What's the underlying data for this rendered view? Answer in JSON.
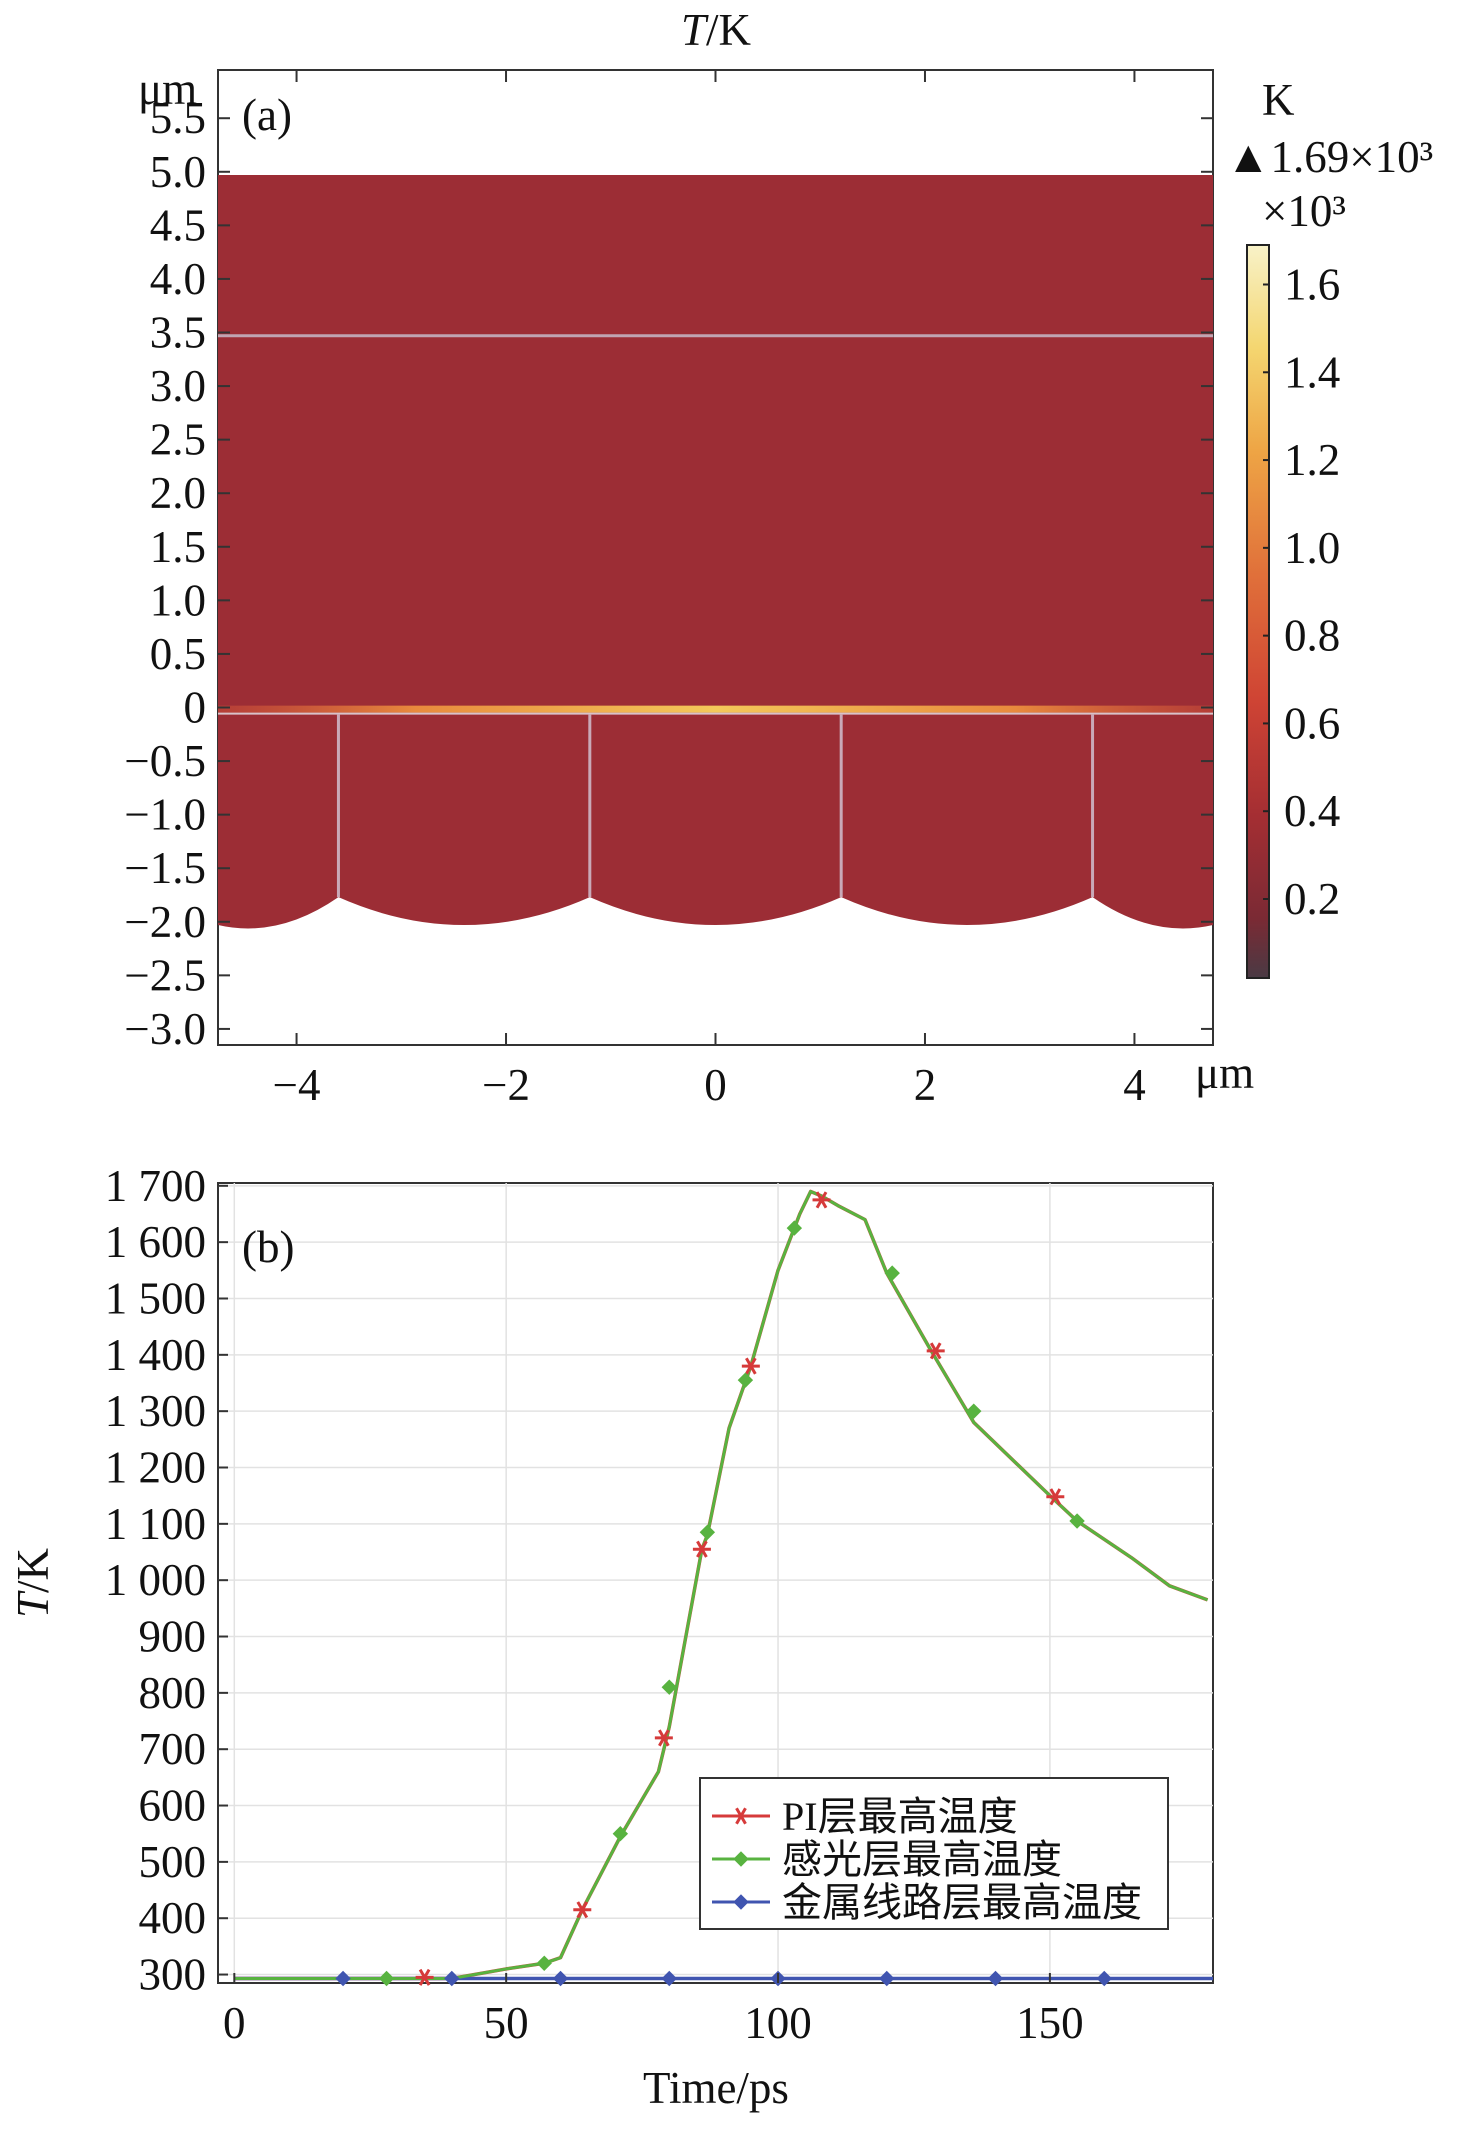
{
  "chart_data": [
    {
      "type": "heatmap",
      "panel_label": "(a)",
      "title_parts": {
        "italic": "T",
        "rest": "/K"
      },
      "x_unit": "μm",
      "y_unit": "μm",
      "xlim": [
        -4.75,
        4.75
      ],
      "ylim": [
        -3.15,
        5.95
      ],
      "x_ticks": [
        {
          "value": -4,
          "label": "−4"
        },
        {
          "value": -2,
          "label": "−2"
        },
        {
          "value": 0,
          "label": "0"
        },
        {
          "value": 2,
          "label": "2"
        },
        {
          "value": 4,
          "label": "4"
        }
      ],
      "y_ticks": [
        {
          "value": 5.5,
          "label": "5.5"
        },
        {
          "value": 5.0,
          "label": "5.0"
        },
        {
          "value": 4.5,
          "label": "4.5"
        },
        {
          "value": 4.0,
          "label": "4.0"
        },
        {
          "value": 3.5,
          "label": "3.5"
        },
        {
          "value": 3.0,
          "label": "3.0"
        },
        {
          "value": 2.5,
          "label": "2.5"
        },
        {
          "value": 2.0,
          "label": "2.0"
        },
        {
          "value": 1.5,
          "label": "1.5"
        },
        {
          "value": 1.0,
          "label": "1.0"
        },
        {
          "value": 0.5,
          "label": "0.5"
        },
        {
          "value": 0,
          "label": "0"
        },
        {
          "value": -0.5,
          "label": "−0.5"
        },
        {
          "value": -1.0,
          "label": "−1.0"
        },
        {
          "value": -1.5,
          "label": "−1.5"
        },
        {
          "value": -2.0,
          "label": "−2.0"
        },
        {
          "value": -2.5,
          "label": "−2.5"
        },
        {
          "value": -3.0,
          "label": "−3.0"
        }
      ],
      "region": {
        "x_range": [
          -4.75,
          4.75
        ],
        "top": 4.97,
        "layer_line": 3.47,
        "interface": -0.02,
        "arc_edges": [
          -4.75,
          -3.6,
          -1.2,
          1.2,
          3.6,
          4.75
        ],
        "arc_edge_y": -1.77,
        "arc_bottom_y": -2.03
      },
      "field_color": "#9c2d35",
      "colorbar": {
        "unit": "K",
        "max_label": "▲1.69×10³",
        "scale_label": "×10³",
        "range": [
          0.02,
          1.69
        ],
        "ticks": [
          {
            "value": 1.6,
            "label": "1.6"
          },
          {
            "value": 1.4,
            "label": "1.4"
          },
          {
            "value": 1.2,
            "label": "1.2"
          },
          {
            "value": 1.0,
            "label": "1.0"
          },
          {
            "value": 0.8,
            "label": "0.8"
          },
          {
            "value": 0.6,
            "label": "0.6"
          },
          {
            "value": 0.4,
            "label": "0.4"
          },
          {
            "value": 0.2,
            "label": "0.2"
          }
        ]
      }
    },
    {
      "type": "line",
      "panel_label": "(b)",
      "xlabel": "Time/ps",
      "ylabel_parts": {
        "italic": "T",
        "rest": "/K"
      },
      "xlim": [
        -3,
        180
      ],
      "ylim": [
        285,
        1705
      ],
      "x_ticks": [
        {
          "value": 0,
          "label": "0"
        },
        {
          "value": 50,
          "label": "50"
        },
        {
          "value": 100,
          "label": "100"
        },
        {
          "value": 150,
          "label": "150"
        }
      ],
      "y_ticks": [
        {
          "value": 1700,
          "label": "1 700"
        },
        {
          "value": 1600,
          "label": "1 600"
        },
        {
          "value": 1500,
          "label": "1 500"
        },
        {
          "value": 1400,
          "label": "1 400"
        },
        {
          "value": 1300,
          "label": "1 300"
        },
        {
          "value": 1200,
          "label": "1 200"
        },
        {
          "value": 1100,
          "label": "1 100"
        },
        {
          "value": 1000,
          "label": "1 000"
        },
        {
          "value": 900,
          "label": "900"
        },
        {
          "value": 800,
          "label": "800"
        },
        {
          "value": 700,
          "label": "700"
        },
        {
          "value": 600,
          "label": "600"
        },
        {
          "value": 500,
          "label": "500"
        },
        {
          "value": 400,
          "label": "400"
        },
        {
          "value": 300,
          "label": "300"
        }
      ],
      "grid": true,
      "legend": {
        "placement": "bottom-right"
      },
      "series": [
        {
          "name": "PI层最高温度",
          "color": "#d63a3a",
          "marker": "star",
          "x": [
            0,
            20,
            40,
            50,
            57,
            60,
            64,
            71,
            78,
            80,
            86,
            87,
            91,
            95,
            100,
            104,
            106,
            108,
            111,
            116,
            120,
            128,
            136,
            150,
            155,
            165,
            172,
            179
          ],
          "y": [
            293,
            293,
            293,
            310,
            320,
            330,
            415,
            545,
            660,
            740,
            1055,
            1080,
            1270,
            1380,
            1550,
            1650,
            1690,
            1682,
            1665,
            1640,
            1545,
            1410,
            1280,
            1150,
            1105,
            1040,
            990,
            965
          ],
          "markers_x": [
            35,
            64,
            79,
            86,
            95,
            108,
            129,
            151
          ],
          "markers_y": [
            295,
            415,
            720,
            1055,
            1380,
            1675,
            1407,
            1148
          ]
        },
        {
          "name": "感光层最高温度",
          "color": "#58b340",
          "marker": "diamond",
          "x": [
            0,
            20,
            40,
            50,
            57,
            60,
            64,
            71,
            78,
            80,
            86,
            87,
            91,
            95,
            100,
            104,
            106,
            108,
            111,
            116,
            120,
            128,
            136,
            150,
            155,
            165,
            172,
            179
          ],
          "y": [
            293,
            293,
            293,
            310,
            320,
            330,
            415,
            545,
            660,
            740,
            1055,
            1080,
            1270,
            1380,
            1550,
            1650,
            1690,
            1682,
            1665,
            1640,
            1545,
            1410,
            1280,
            1150,
            1105,
            1040,
            990,
            965
          ],
          "markers_x": [
            28,
            57,
            71,
            80,
            87,
            94,
            103,
            121,
            136,
            155
          ],
          "markers_y": [
            293,
            320,
            550,
            810,
            1085,
            1355,
            1625,
            1545,
            1300,
            1105
          ]
        },
        {
          "name": "金属线路层最高温度",
          "color": "#4055b0",
          "marker": "diamond",
          "x": [
            0,
            180
          ],
          "y": [
            293,
            293
          ],
          "markers_x": [
            20,
            40,
            60,
            80,
            100,
            120,
            140,
            160
          ],
          "markers_y": [
            293,
            293,
            293,
            293,
            293,
            293,
            293,
            293
          ]
        }
      ]
    }
  ]
}
